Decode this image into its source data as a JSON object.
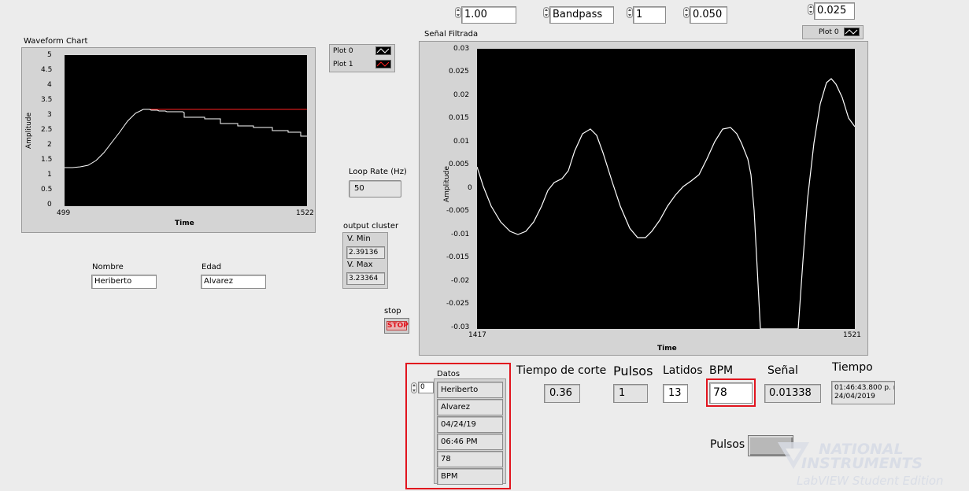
{
  "top_controls": {
    "gain": "1.00",
    "filter_type": "Bandpass",
    "order": "1",
    "low_cutoff": "0.050",
    "high_cutoff": "0.025"
  },
  "waveform_chart": {
    "title": "Waveform Chart",
    "legend": [
      "Plot 0",
      "Plot 1"
    ],
    "y_ticks": [
      "5",
      "4.5",
      "4",
      "3.5",
      "3",
      "2.5",
      "2",
      "1.5",
      "1",
      "0.5",
      "0"
    ],
    "x_min_label": "499",
    "x_max_label": "1522",
    "xlabel": "Time",
    "ylabel": "Amplitude"
  },
  "loop_rate": {
    "label": "Loop Rate (Hz)",
    "value": "50"
  },
  "output_cluster": {
    "label": "output cluster",
    "vmin_label": "V. Min",
    "vmin_value": "2.39136",
    "vmax_label": "V. Max",
    "vmax_value": "3.23364"
  },
  "nombre": {
    "label": "Nombre",
    "value": "Heriberto"
  },
  "edad": {
    "label": "Edad",
    "value": "Alvarez"
  },
  "stop": {
    "label": "stop",
    "button": "STOP"
  },
  "filtered_chart": {
    "title": "Señal Filtrada",
    "legend": "Plot 0",
    "y_ticks": [
      "0.03",
      "0.025",
      "0.02",
      "0.015",
      "0.01",
      "0.005",
      "0",
      "-0.005",
      "-0.01",
      "-0.015",
      "-0.02",
      "-0.025",
      "-0.03"
    ],
    "x_min_label": "1417",
    "x_max_label": "1521",
    "xlabel": "Time",
    "ylabel": "Amplitude"
  },
  "datos": {
    "label": "Datos",
    "index": "0",
    "items": [
      "Heriberto",
      "Alvarez",
      "04/24/19",
      "06:46 PM",
      "78",
      "BPM"
    ]
  },
  "tiempo_corte": {
    "label": "Tiempo de corte",
    "value": "0.36"
  },
  "pulsos_ind": {
    "label": "Pulsos",
    "value": "1"
  },
  "latidos": {
    "label": "Latidos",
    "value": "13"
  },
  "bpm": {
    "label": "BPM",
    "value": "78"
  },
  "senal": {
    "label": "Señal",
    "value": "0.01338"
  },
  "tiempo": {
    "label": "Tiempo",
    "line1": "01:46:43.800 p. r",
    "line2": "24/04/2019"
  },
  "pulsos_led": {
    "label": "Pulsos"
  },
  "brand": {
    "line1": "NATIONAL",
    "line2": "INSTRUMENTS",
    "line3": "LabVIEW Student Edition"
  },
  "colors": {
    "plot0": "#ffffff",
    "plot1": "#ff2020",
    "highlight": "#e1141e"
  }
}
